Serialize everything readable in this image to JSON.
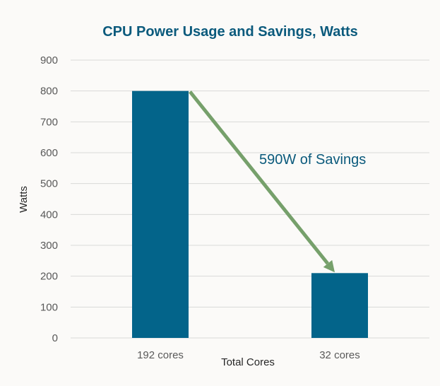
{
  "chart_data": {
    "type": "bar",
    "title": "CPU Power Usage and Savings, Watts",
    "xlabel": "Total Cores",
    "ylabel": "Watts",
    "categories": [
      "192 cores",
      "32 cores"
    ],
    "values": [
      800,
      210
    ],
    "ylim": [
      0,
      900
    ],
    "yticks": [
      0,
      100,
      200,
      300,
      400,
      500,
      600,
      700,
      800,
      900
    ],
    "grid": true,
    "legend": "none",
    "annotation": {
      "text": "590W of Savings",
      "type": "arrow",
      "from": "192 cores",
      "to": "32 cores"
    },
    "colors": {
      "bar": "#03648a",
      "arrow": "#76a06b",
      "title": "#0b5a7c",
      "grid": "#d9d9d9"
    }
  }
}
